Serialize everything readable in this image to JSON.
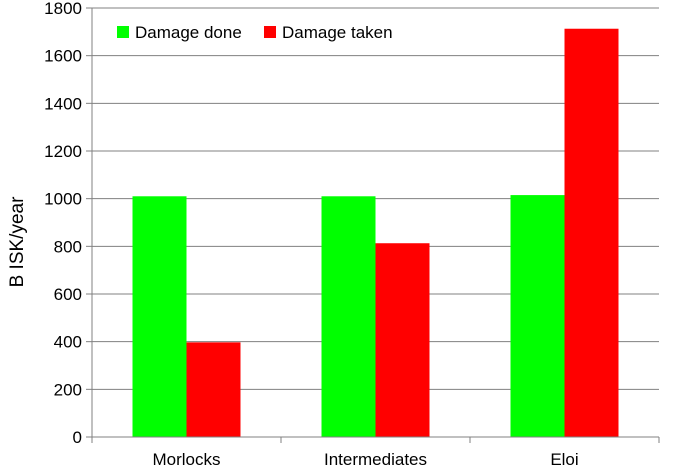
{
  "chart_data": {
    "type": "bar",
    "title": "",
    "xlabel": "",
    "ylabel": "B ISK/year",
    "categories": [
      "Morlocks",
      "Intermediates",
      "Eloi"
    ],
    "series": [
      {
        "name": "Damage done",
        "color": "#00ff00",
        "values": [
          1010,
          1010,
          1015
        ]
      },
      {
        "name": "Damage taken",
        "color": "#ff0000",
        "values": [
          397,
          813,
          1713
        ]
      }
    ],
    "ylim": [
      0,
      1800
    ],
    "yticks": [
      0,
      200,
      400,
      600,
      800,
      1000,
      1200,
      1400,
      1600,
      1800
    ],
    "grid": true,
    "legend_position": "top-left"
  }
}
